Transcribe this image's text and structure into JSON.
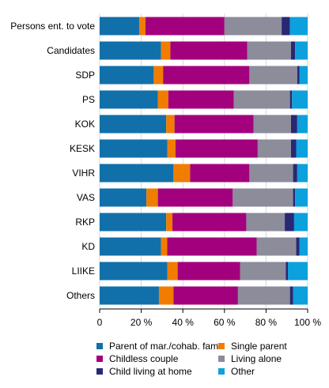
{
  "chart_data": {
    "type": "bar",
    "orientation": "horizontal",
    "stacked": true,
    "percent": true,
    "categories": [
      "Persons ent. to vote",
      "Candidates",
      "SDP",
      "PS",
      "KOK",
      "KESK",
      "VIHR",
      "VAS",
      "RKP",
      "KD",
      "LIIKE",
      "Others"
    ],
    "series": [
      {
        "name": "Parent of mar./cohab. fam.",
        "color": "#1170aa",
        "values": [
          19,
          29.5,
          26,
          28,
          32,
          32.5,
          35.5,
          22.5,
          32,
          29.5,
          32.5,
          28.5
        ]
      },
      {
        "name": "Single parent",
        "color": "#f07d00",
        "values": [
          3,
          4.5,
          4.5,
          5,
          4,
          4,
          8,
          5.5,
          3,
          3,
          5,
          7
        ]
      },
      {
        "name": "Childless couple",
        "color": "#a3007d",
        "values": [
          38,
          37,
          41.5,
          31.5,
          38,
          39.5,
          28.5,
          36,
          35.5,
          43,
          30,
          31
        ]
      },
      {
        "name": "Living alone",
        "color": "#8c8c9b",
        "values": [
          27.5,
          21,
          23,
          27,
          18,
          16,
          21,
          29,
          18.5,
          19,
          22,
          25
        ]
      },
      {
        "name": "Child living at home",
        "color": "#282873",
        "values": [
          4,
          2,
          1,
          1,
          3,
          2.5,
          2,
          1,
          4.5,
          1.5,
          1,
          1.5
        ]
      },
      {
        "name": "Other",
        "color": "#0ca0dc",
        "values": [
          8.5,
          6,
          4,
          7.5,
          5,
          5.5,
          5,
          6,
          6.5,
          4,
          9.5,
          7
        ]
      }
    ],
    "x_ticks": [
      "0",
      "20 %",
      "40 %",
      "60 %",
      "80 %",
      "100 %"
    ],
    "xlim": [
      0,
      100
    ],
    "grid": true,
    "legend_position": "bottom"
  }
}
